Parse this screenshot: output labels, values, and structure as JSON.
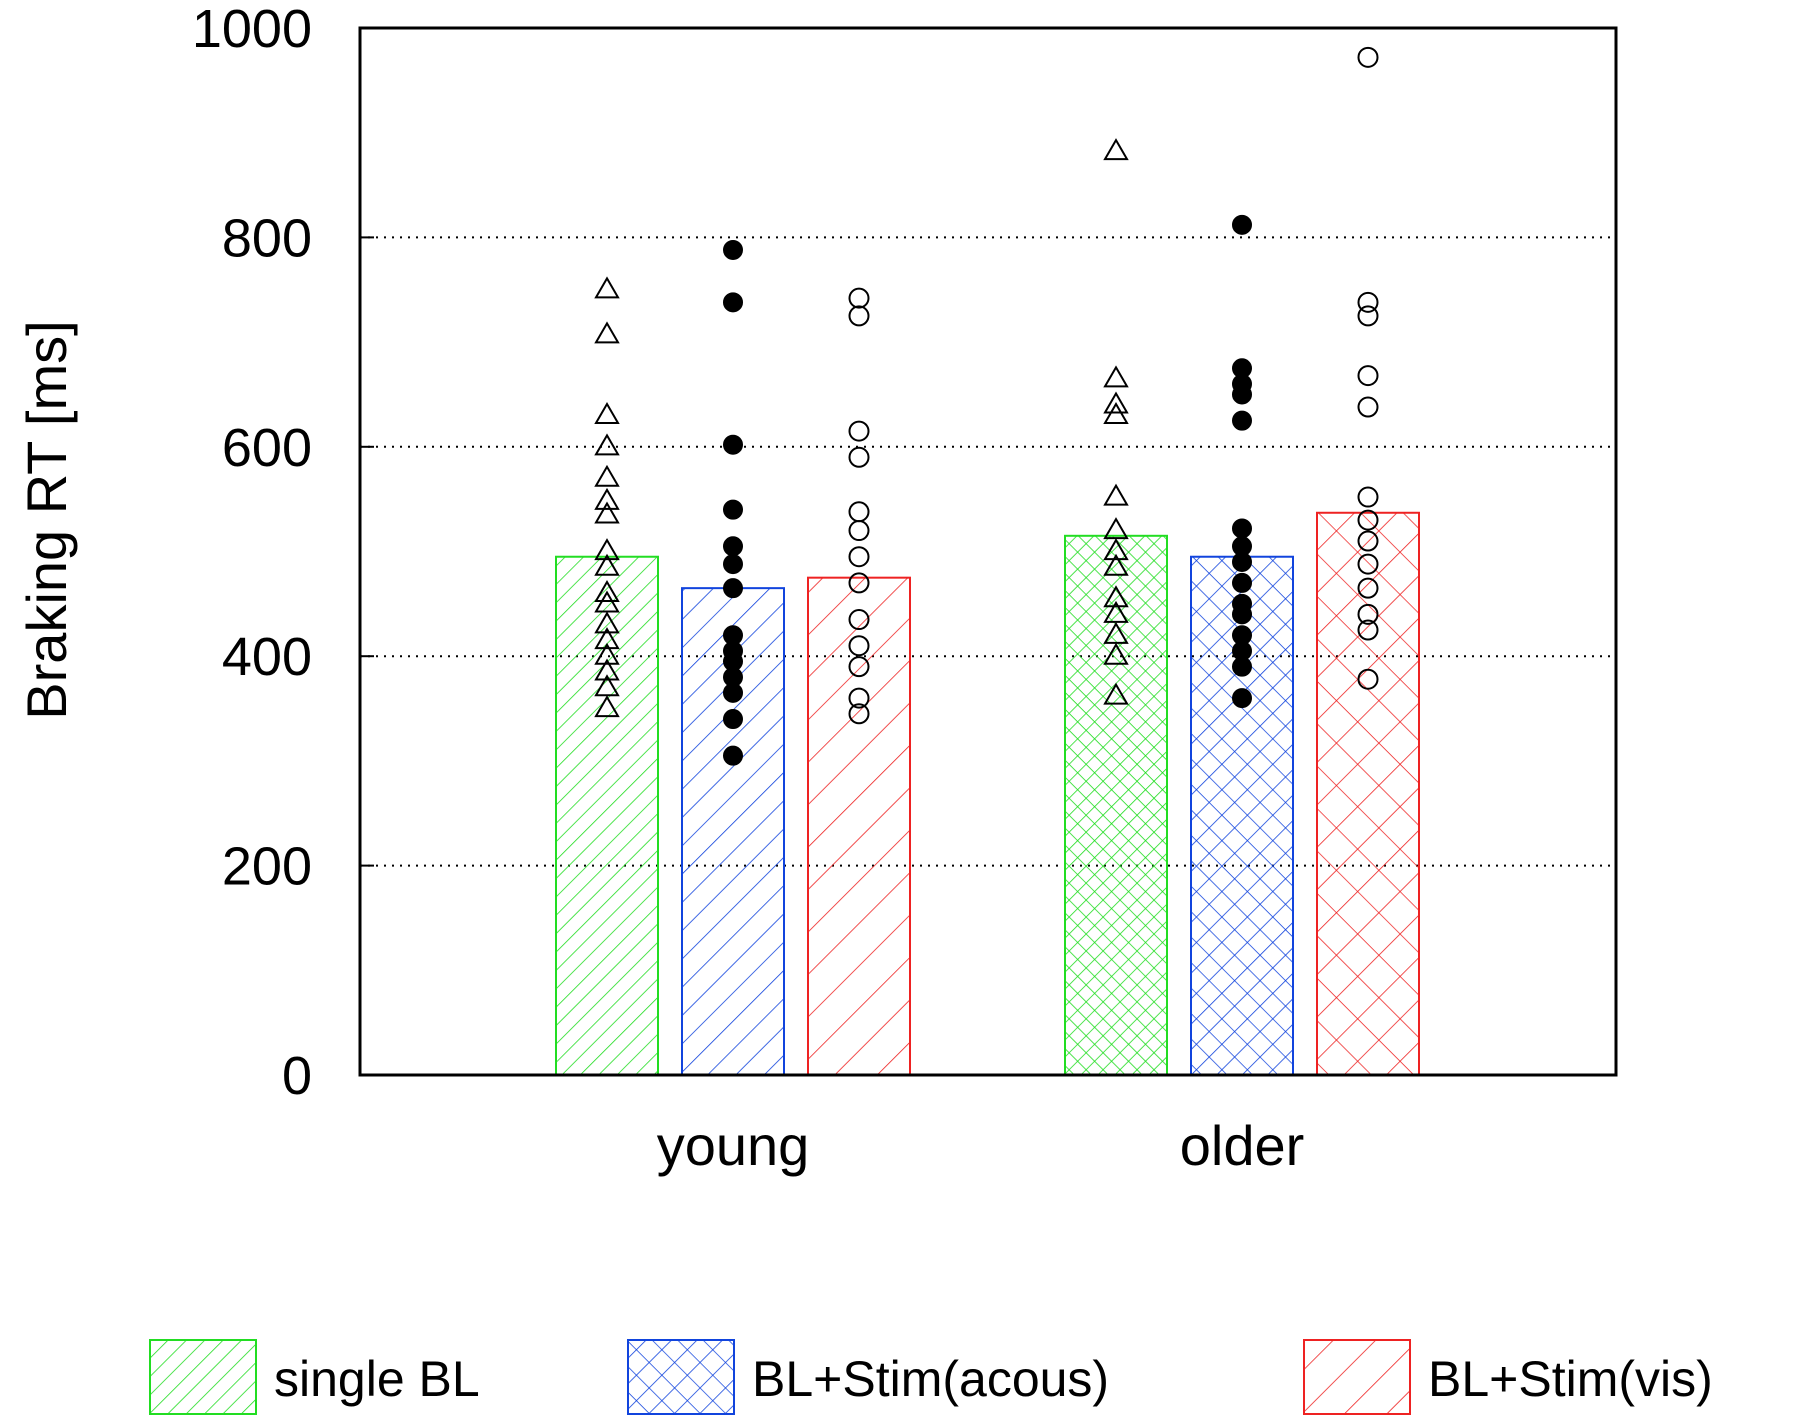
{
  "chart_data": {
    "type": "bar",
    "title": "",
    "xlabel": "",
    "ylabel": "Braking RT [ms]",
    "ylim": [
      0,
      1000
    ],
    "yticks": [
      0,
      200,
      400,
      600,
      800,
      1000
    ],
    "ytick_labels": [
      "0",
      "200",
      "400",
      "600",
      "800",
      "1000"
    ],
    "gridlines": [
      200,
      400,
      600,
      800
    ],
    "categories": [
      "young",
      "older"
    ],
    "legend_position": "bottom",
    "series": [
      {
        "name": "single BL",
        "color": "#22dd22",
        "pattern": "diagonal",
        "marker": "triangle-open",
        "values": [
          495,
          515
        ],
        "points": [
          [
            750,
            707,
            630,
            600,
            570,
            548,
            535,
            500,
            485,
            460,
            450,
            430,
            415,
            400,
            385,
            370,
            350
          ],
          [
            882,
            665,
            640,
            630,
            552,
            520,
            500,
            485,
            455,
            440,
            420,
            400,
            362
          ]
        ]
      },
      {
        "name": "BL+Stim(acous)",
        "color": "#1144dd",
        "pattern": "crosshatch",
        "marker": "circle-filled",
        "values": [
          465,
          495
        ],
        "points": [
          [
            788,
            738,
            602,
            540,
            505,
            488,
            465,
            420,
            405,
            395,
            380,
            365,
            340,
            305
          ],
          [
            812,
            675,
            660,
            650,
            625,
            522,
            505,
            490,
            470,
            450,
            440,
            420,
            405,
            390,
            360
          ]
        ]
      },
      {
        "name": "BL+Stim(vis)",
        "color": "#ee2222",
        "pattern": "diagonal",
        "marker": "circle-open",
        "values": [
          475,
          537
        ],
        "points": [
          [
            742,
            725,
            615,
            590,
            538,
            520,
            495,
            470,
            435,
            410,
            390,
            360,
            345
          ],
          [
            972,
            738,
            725,
            668,
            638,
            552,
            530,
            510,
            488,
            465,
            440,
            425,
            378
          ]
        ]
      }
    ]
  }
}
